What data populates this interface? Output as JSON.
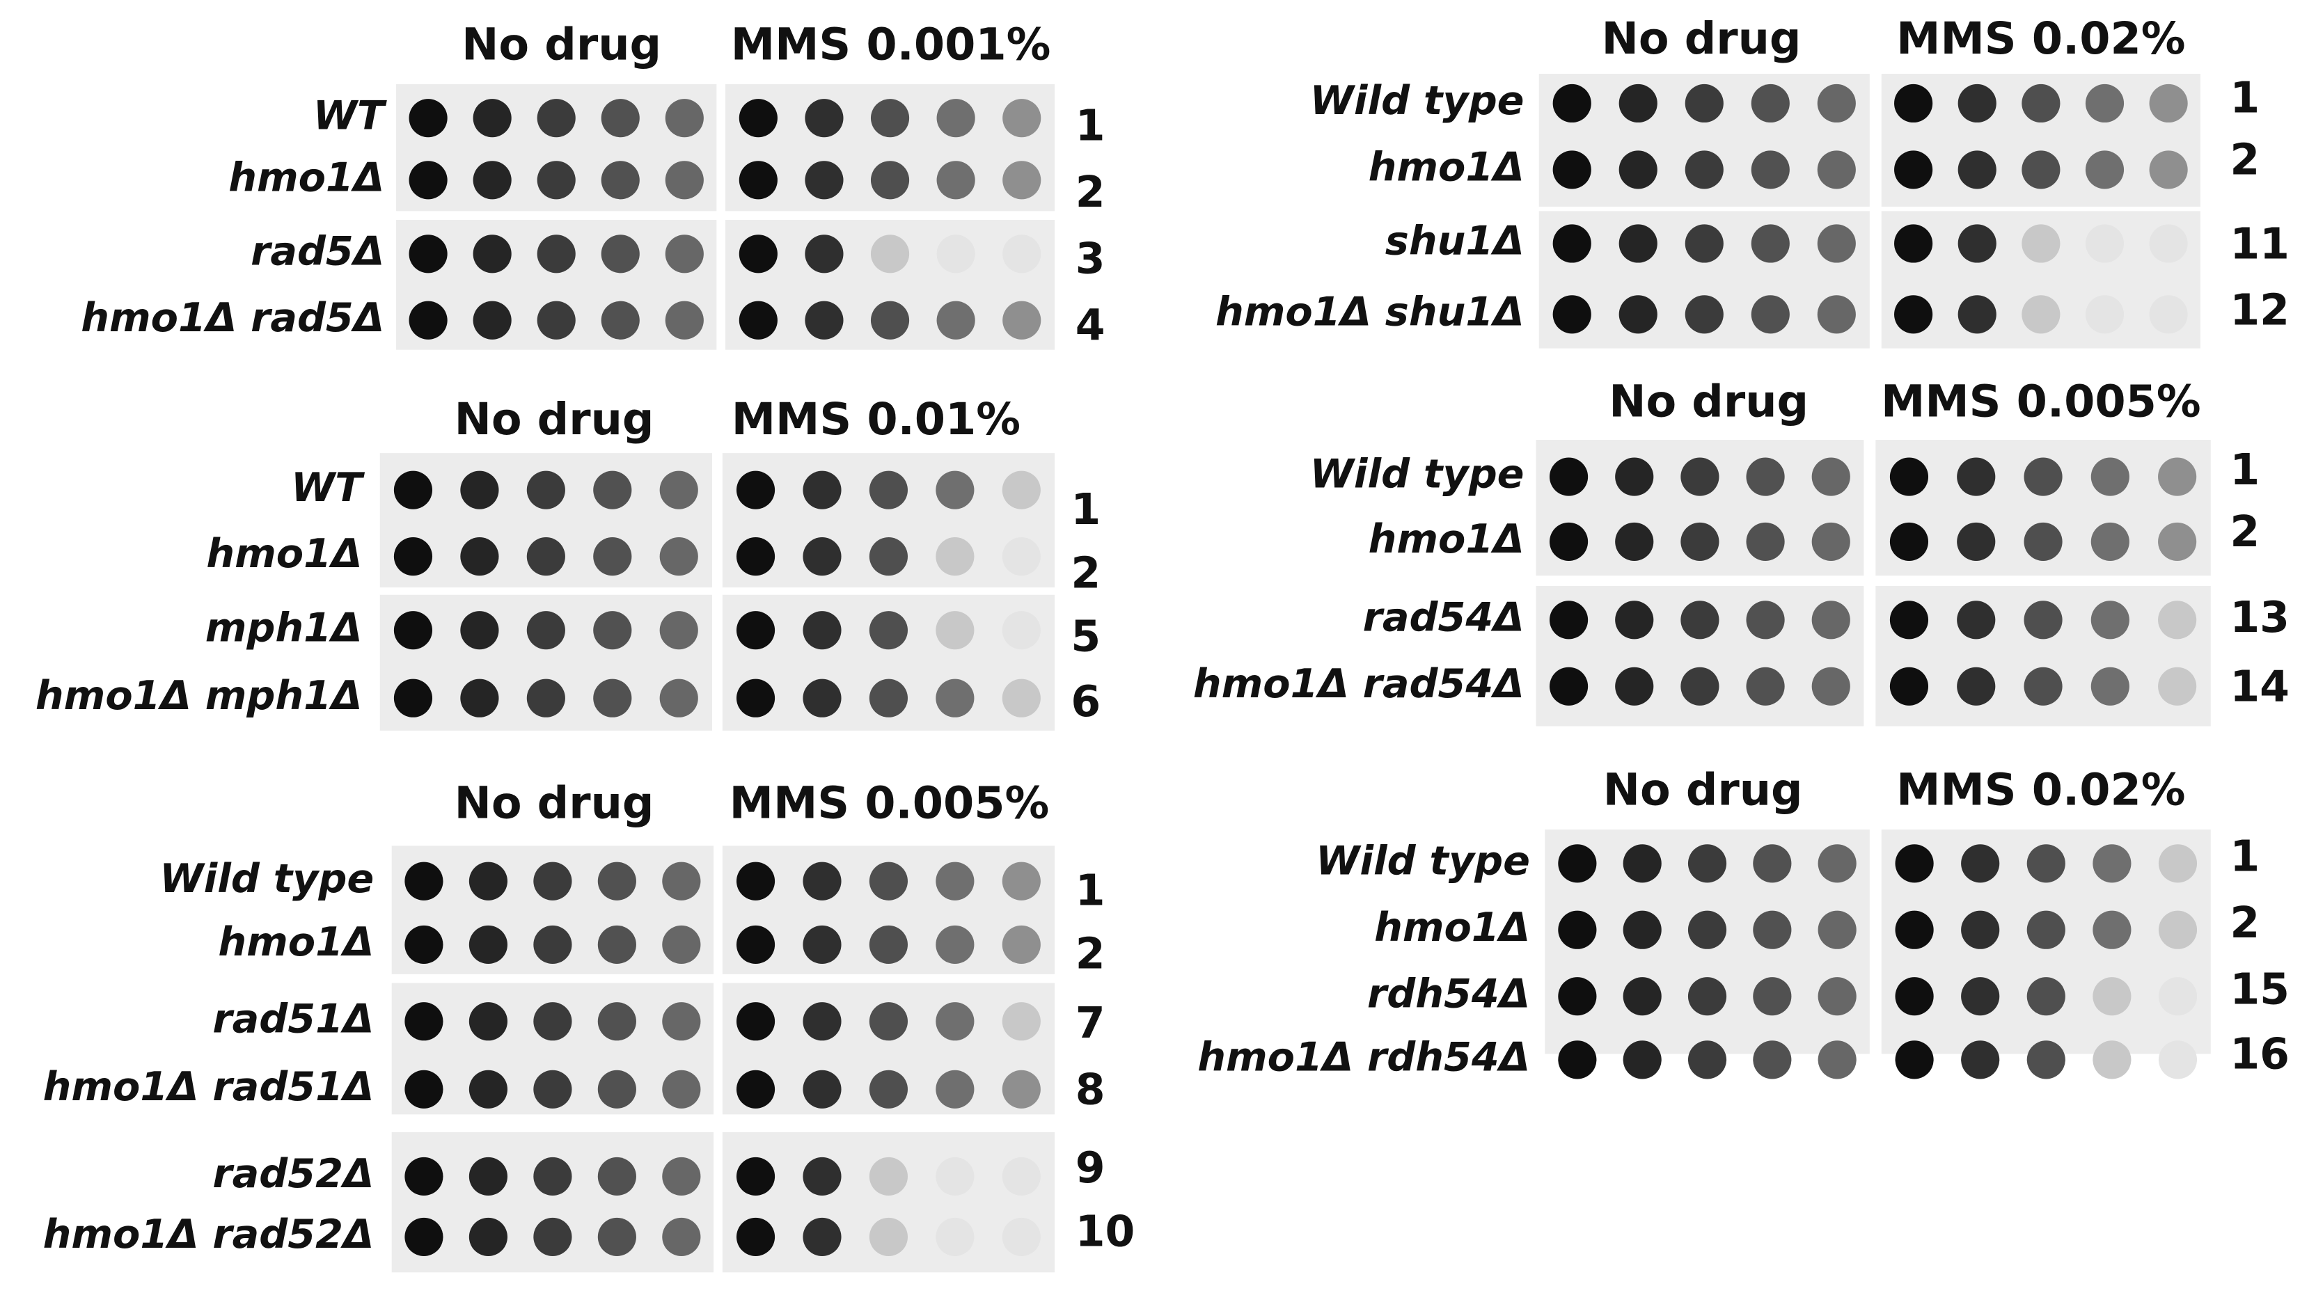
{
  "panels": [
    {
      "headers": [
        "No drug",
        "MMS 0.001%"
      ],
      "rows": [
        {
          "strain": "WT",
          "number": 1
        },
        {
          "strain": "hmo1Δ",
          "number": 2
        },
        {
          "strain": "rad5Δ",
          "number": 3
        },
        {
          "strain": "hmo1Δ rad5Δ",
          "number": 4
        }
      ]
    },
    {
      "headers": [
        "No drug",
        "MMS 0.01%"
      ],
      "rows": [
        {
          "strain": "WT",
          "number": 1
        },
        {
          "strain": "hmo1Δ",
          "number": 2
        },
        {
          "strain": "mph1Δ",
          "number": 5
        },
        {
          "strain": "hmo1Δ mph1Δ",
          "number": 6
        }
      ]
    },
    {
      "headers": [
        "No drug",
        "MMS 0.005%"
      ],
      "rows": [
        {
          "strain": "Wild type",
          "number": 1
        },
        {
          "strain": "hmo1Δ",
          "number": 2
        },
        {
          "strain": "rad51Δ",
          "number": 7
        },
        {
          "strain": "hmo1Δ rad51Δ",
          "number": 8
        },
        {
          "strain": "rad52Δ",
          "number": 9
        },
        {
          "strain": "hmo1Δ rad52Δ",
          "number": 10
        }
      ]
    },
    {
      "headers": [
        "No drug",
        "MMS 0.02%"
      ],
      "rows": [
        {
          "strain": "Wild type",
          "number": 1
        },
        {
          "strain": "hmo1Δ",
          "number": 2
        },
        {
          "strain": "shu1Δ",
          "number": 11
        },
        {
          "strain": "hmo1Δ shu1Δ",
          "number": 12
        }
      ]
    },
    {
      "headers": [
        "No drug",
        "MMS 0.005%"
      ],
      "rows": [
        {
          "strain": "Wild type",
          "number": 1
        },
        {
          "strain": "hmo1Δ",
          "number": 2
        },
        {
          "strain": "rad54Δ",
          "number": 13
        },
        {
          "strain": "hmo1Δ rad54Δ",
          "number": 14
        }
      ]
    },
    {
      "headers": [
        "No drug",
        "MMS 0.02%"
      ],
      "rows": [
        {
          "strain": "Wild type",
          "number": 1
        },
        {
          "strain": "hmo1Δ",
          "number": 2
        },
        {
          "strain": "rdh54Δ",
          "number": 15
        },
        {
          "strain": "hmo1Δ rdh54Δ",
          "number": 16
        }
      ]
    }
  ]
}
